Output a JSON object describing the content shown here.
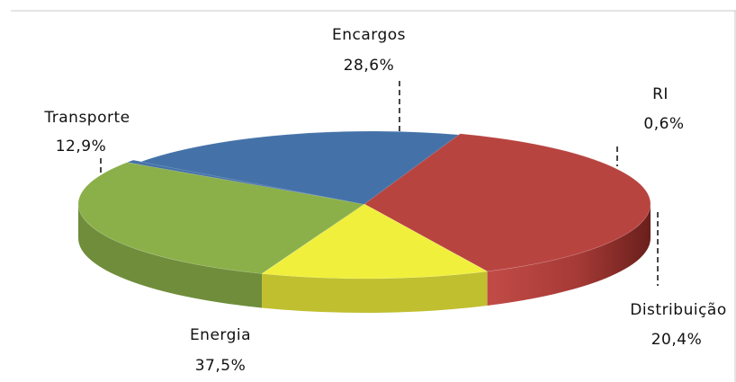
{
  "chart_data": {
    "type": "pie",
    "title": "",
    "categories": [
      "Encargos",
      "RI",
      "Distribuição",
      "Energia",
      "Transporte"
    ],
    "values_percent": [
      28.6,
      0.6,
      20.4,
      37.5,
      12.9
    ],
    "value_labels": [
      "28,6%",
      "0,6%",
      "20,4%",
      "37,5%",
      "12,9%"
    ],
    "colors": [
      "#8bb04a",
      "#4472a8",
      "#4472a8",
      "#b84440",
      "#f0ef3c"
    ],
    "style": "3d-exploded-pie",
    "legend": "none"
  }
}
